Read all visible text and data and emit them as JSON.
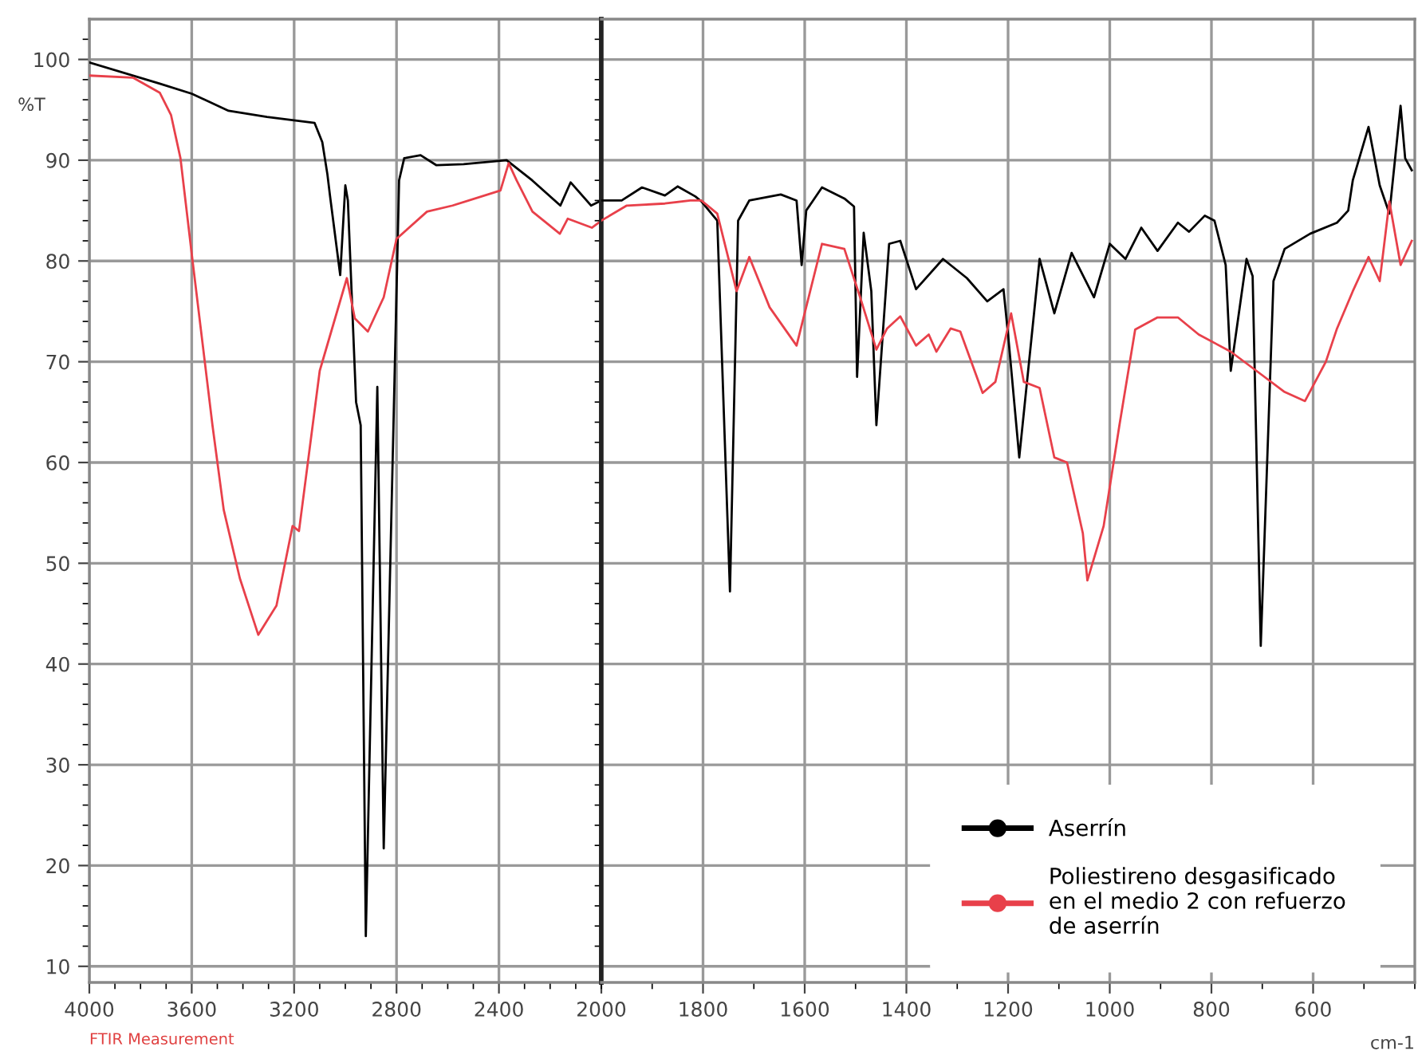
{
  "chart_data": [
    {
      "type": "line",
      "ylabel": "%T",
      "annotations": [
        "FTIR Measurement"
      ],
      "xlim": [
        4000,
        2000
      ],
      "ylim": [
        8.4,
        104
      ],
      "xticks": [
        4000,
        3600,
        3200,
        2800,
        2400,
        2000
      ],
      "yticks": [
        10,
        20,
        30,
        40,
        50,
        60,
        70,
        80,
        90,
        100
      ],
      "grid": true,
      "series": [
        {
          "color": "#000000",
          "x": [
            4000,
            3725,
            3600,
            3456,
            3306,
            3120,
            3090,
            3070,
            3060,
            3020,
            3000,
            2990,
            2958,
            2940,
            2920,
            2875,
            2850,
            2790,
            2770,
            2706,
            2644,
            2538,
            2370,
            2270,
            2160,
            2120,
            2040,
            2000
          ],
          "values": [
            99.7,
            97.6,
            96.6,
            94.9,
            94.3,
            93.7,
            91.8,
            88.6,
            86.5,
            78.6,
            87.5,
            86,
            66,
            63.7,
            13,
            67.5,
            21.7,
            88,
            90.2,
            90.5,
            89.5,
            89.6,
            90,
            88,
            85.5,
            87.8,
            85.5,
            86
          ]
        },
        {
          "color": "#e8404a",
          "x": [
            4000,
            3830,
            3725,
            3681,
            3644,
            3600,
            3519,
            3475,
            3412,
            3340,
            3269,
            3206,
            3181,
            3100,
            2994,
            2963,
            2912,
            2850,
            2800,
            2681,
            2581,
            2394,
            2362,
            2331,
            2269,
            2162,
            2131,
            2037,
            2000
          ],
          "values": [
            98.4,
            98.2,
            96.7,
            94.5,
            90.2,
            80.7,
            63.7,
            55.3,
            48.5,
            42.9,
            45.8,
            53.7,
            53.2,
            69.1,
            78.3,
            74.3,
            73,
            76.4,
            82.2,
            84.9,
            85.5,
            87,
            89.7,
            88,
            84.9,
            82.7,
            84.2,
            83.3,
            84
          ]
        }
      ]
    },
    {
      "type": "line",
      "xlabel": "cm-1",
      "xlim": [
        2000,
        400
      ],
      "ylim": [
        8.4,
        104
      ],
      "xticks": [
        1800,
        1600,
        1400,
        1200,
        1000,
        800,
        600
      ],
      "tick_labels": "x",
      "grid": true,
      "legend": "bottom right",
      "series": [
        {
          "name": "Aserrín",
          "color": "#000000",
          "x": [
            2000,
            1960,
            1920,
            1875,
            1850,
            1815,
            1803,
            1772,
            1747,
            1731,
            1709,
            1647,
            1616,
            1606,
            1597,
            1566,
            1522,
            1503,
            1497,
            1484,
            1469,
            1459,
            1434,
            1412,
            1381,
            1328,
            1281,
            1241,
            1209,
            1200,
            1178,
            1138,
            1109,
            1075,
            1031,
            1000,
            969,
            938,
            906,
            866,
            844,
            813,
            794,
            772,
            762,
            731,
            719,
            703,
            678,
            656,
            606,
            553,
            531,
            522,
            491,
            469,
            450,
            428,
            419,
            406
          ],
          "values": [
            86,
            86,
            87.3,
            86.5,
            87.4,
            86.4,
            85.9,
            84,
            47.2,
            84,
            86,
            86.6,
            86,
            79.6,
            85,
            87.3,
            86.2,
            85.4,
            68.5,
            82.8,
            77,
            63.7,
            81.7,
            82,
            77.2,
            80.2,
            78.3,
            76,
            77.2,
            72.7,
            60.5,
            80.2,
            74.8,
            80.8,
            76.4,
            81.7,
            80.2,
            83.3,
            81,
            83.8,
            82.9,
            84.5,
            84,
            79.6,
            69.1,
            80.2,
            78.5,
            41.8,
            78,
            81.2,
            82.7,
            83.8,
            85,
            88,
            93.3,
            87.5,
            84.7,
            95.4,
            90.2,
            89
          ]
        },
        {
          "name": "Poliestireno desgasificado\nen el medio 2 con refuerzo\nde aserrín",
          "color": "#e8404a",
          "x": [
            2000,
            1990,
            1950,
            1875,
            1825,
            1803,
            1772,
            1734,
            1709,
            1669,
            1616,
            1566,
            1522,
            1491,
            1459,
            1438,
            1412,
            1381,
            1356,
            1341,
            1313,
            1294,
            1250,
            1225,
            1194,
            1169,
            1138,
            1109,
            1084,
            1053,
            1044,
            1012,
            981,
            950,
            906,
            866,
            825,
            762,
            709,
            656,
            616,
            575,
            553,
            522,
            491,
            469,
            450,
            428,
            406
          ],
          "values": [
            84,
            84.3,
            85.5,
            85.7,
            86,
            86,
            84.7,
            77,
            80.4,
            75.4,
            71.6,
            81.7,
            81.2,
            76.4,
            71.2,
            73.3,
            74.5,
            71.6,
            72.7,
            71,
            73.3,
            73,
            66.9,
            68,
            74.8,
            68,
            67.4,
            60.5,
            60,
            53,
            48.3,
            53.7,
            63.7,
            73.2,
            74.4,
            74.4,
            72.7,
            71,
            69,
            67,
            66.1,
            70,
            73.3,
            77,
            80.4,
            78,
            85.9,
            79.6,
            82
          ]
        }
      ]
    }
  ]
}
